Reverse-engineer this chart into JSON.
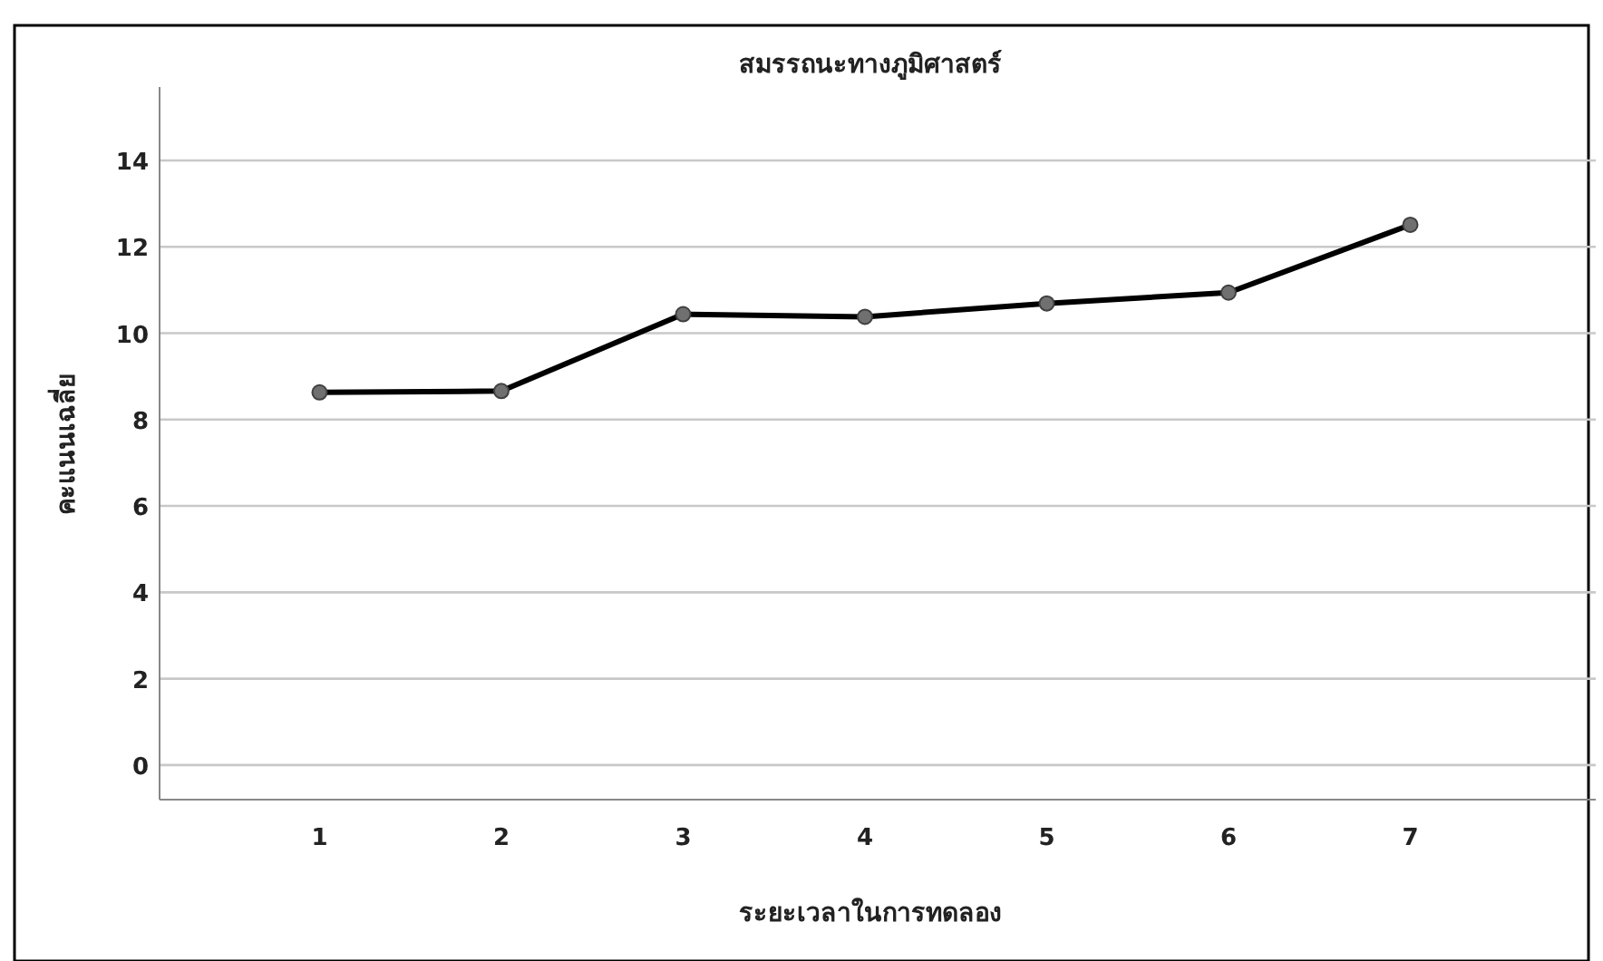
{
  "chart_data": {
    "type": "line",
    "title": "สมรรถนะทางภูมิศาสตร์",
    "xlabel": "ระยะเวลาในการทดลอง",
    "ylabel": "คะแนนเฉลี่ย",
    "categories": [
      "1",
      "2",
      "3",
      "4",
      "5",
      "6",
      "7"
    ],
    "series": [
      {
        "color": "#000000",
        "values": [
          8.63,
          8.66,
          10.44,
          10.38,
          10.69,
          10.94,
          12.51
        ]
      }
    ],
    "ylim": [
      -0.8,
      15.7
    ],
    "yticks": [
      0,
      2,
      4,
      6,
      8,
      10,
      12,
      14
    ],
    "grid": "y",
    "marker": "circle",
    "line_style": "solid"
  }
}
